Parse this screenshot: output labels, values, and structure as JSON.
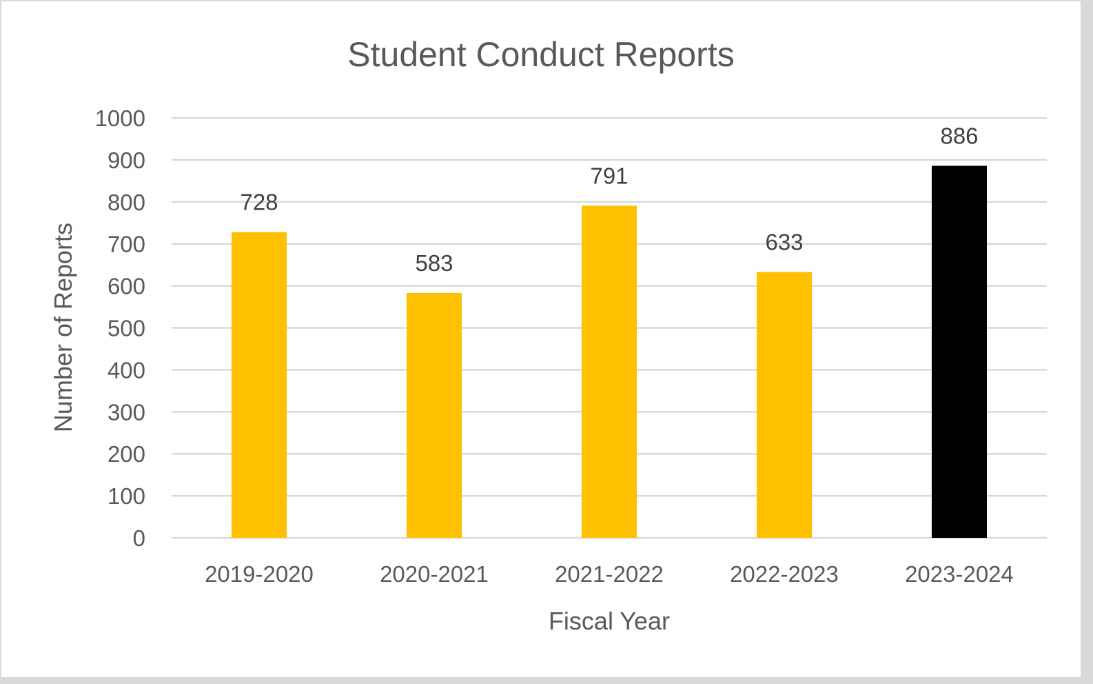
{
  "chart_data": {
    "type": "bar",
    "title": "Student Conduct Reports",
    "xlabel": "Fiscal Year",
    "ylabel": "Number of Reports",
    "categories": [
      "2019-2020",
      "2020-2021",
      "2021-2022",
      "2022-2023",
      "2023-2024"
    ],
    "values": [
      728,
      583,
      791,
      633,
      886
    ],
    "data_labels": [
      "728",
      "583",
      "791",
      "633",
      "886"
    ],
    "bar_colors": [
      "#FFC000",
      "#FFC000",
      "#FFC000",
      "#FFC000",
      "#000000"
    ],
    "ylim": [
      0,
      1000
    ],
    "yticks": [
      0,
      100,
      200,
      300,
      400,
      500,
      600,
      700,
      800,
      900,
      1000
    ],
    "grid": true,
    "legend": "none"
  },
  "colors": {
    "text": "#595959",
    "label": "#404040",
    "grid": "#d9d9d9"
  }
}
